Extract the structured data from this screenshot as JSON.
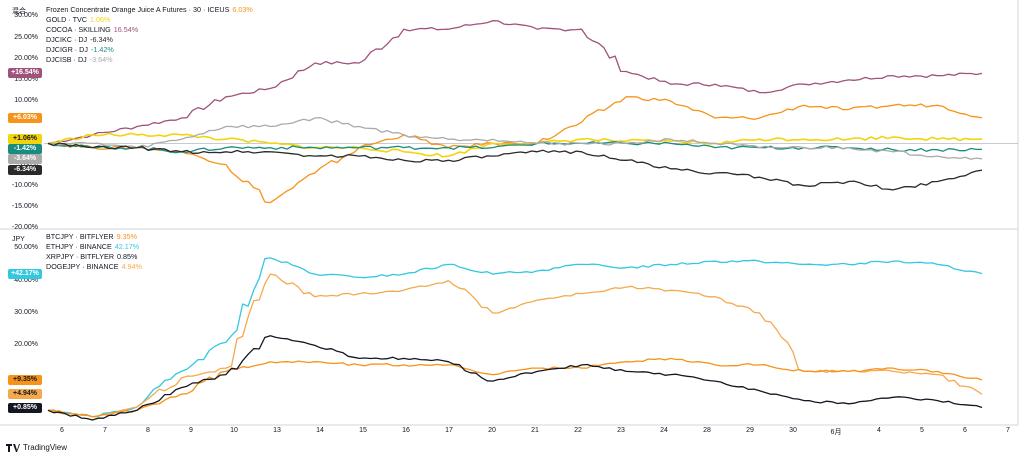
{
  "top_panel": {
    "unit_label": "混合",
    "legend": [
      {
        "name": "Frozen Concentrate Orange Juice A Futures · 30 · ICEUS",
        "value": "6.03%",
        "color": "#f7931a"
      },
      {
        "name": "GOLD · TVC",
        "value": "1.06%",
        "color": "#f2d40e"
      },
      {
        "name": "COCOA · SKILLING",
        "value": "16.54%",
        "color": "#a0527a"
      },
      {
        "name": "DJCIKC · DJ",
        "value": "-6.34%",
        "color": "#2a2a2a"
      },
      {
        "name": "DJCIGR · DJ",
        "value": "-1.42%",
        "color": "#1a8c7f"
      },
      {
        "name": "DJCISB · DJ",
        "value": "-3.64%",
        "color": "#aaaaaa"
      }
    ],
    "y_ticks": [
      "30.00%",
      "25.00%",
      "20.00%",
      "15.00%",
      "10.00%",
      "5.00%",
      "0.00%",
      "-5.00%",
      "-10.00%",
      "-15.00%",
      "-20.00%"
    ],
    "badges": [
      {
        "text": "+16.54%",
        "color": "#a0527a",
        "value": 16.54
      },
      {
        "text": "+6.03%",
        "color": "#f7931a",
        "value": 6.03
      },
      {
        "text": "+1.06%",
        "color": "#f2d40e",
        "value": 1.06,
        "dark": true
      },
      {
        "text": "-1.42%",
        "color": "#1a8c7f",
        "value": -1.42
      },
      {
        "text": "-3.64%",
        "color": "#aaaaaa",
        "value": -3.64
      },
      {
        "text": "-6.34%",
        "color": "#2a2a2a",
        "value": -6.34
      }
    ]
  },
  "bottom_panel": {
    "unit_label": "JPY",
    "legend": [
      {
        "name": "BTCJPY · BITFLYER",
        "value": "9.35%",
        "color": "#f7931a"
      },
      {
        "name": "ETHJPY · BINANCE",
        "value": "42.17%",
        "color": "#32c8e0"
      },
      {
        "name": "XRPJPY · BITFLYER",
        "value": "0.85%",
        "color": "#131722"
      },
      {
        "name": "DOGEJPY · BINANCE",
        "value": "4.94%",
        "color": "#f5a94d"
      }
    ],
    "y_ticks": [
      "50.00%",
      "40.00%",
      "30.00%",
      "20.00%"
    ],
    "badges": [
      {
        "text": "+42.17%",
        "color": "#32c8e0",
        "value": 42.17
      },
      {
        "text": "+9.35%",
        "color": "#f7931a",
        "value": 9.35,
        "dark": true
      },
      {
        "text": "+4.94%",
        "color": "#f5a94d",
        "value": 4.94,
        "dark": true
      },
      {
        "text": "+0.85%",
        "color": "#131722",
        "value": 0.85
      }
    ]
  },
  "x_ticks": [
    "6",
    "7",
    "8",
    "9",
    "10",
    "13",
    "14",
    "15",
    "16",
    "17",
    "20",
    "21",
    "22",
    "23",
    "24",
    "28",
    "29",
    "30",
    "6月",
    "4",
    "5",
    "6",
    "7"
  ],
  "branding": "TradingView",
  "chart_data": [
    {
      "type": "line",
      "x": [
        "6",
        "7",
        "8",
        "9",
        "10",
        "13",
        "14",
        "15",
        "16",
        "17",
        "20",
        "21",
        "22",
        "23",
        "24",
        "28",
        "29",
        "30",
        "6月",
        "4",
        "5",
        "6"
      ],
      "ylim": [
        -20,
        32
      ],
      "series": [
        {
          "name": "COCOA · SKILLING",
          "color": "#a0527a",
          "values": [
            0,
            2,
            4,
            6,
            11,
            13,
            19,
            19,
            27,
            27,
            29,
            27,
            27,
            17,
            14,
            14,
            12,
            14,
            15,
            16,
            16,
            16.54
          ]
        },
        {
          "name": "Frozen Concentrate Orange Juice A Futures · 30 · ICEUS",
          "color": "#f7931a",
          "values": [
            0,
            -1,
            -1,
            -2,
            -5,
            -14,
            -7,
            -1,
            2,
            -1,
            0,
            0,
            5,
            11,
            10,
            6,
            6,
            9,
            8,
            9,
            9,
            6.03
          ]
        },
        {
          "name": "GOLD · TVC",
          "color": "#f2d40e",
          "values": [
            0,
            2,
            2,
            2,
            1,
            0,
            -1,
            -1,
            -2,
            -3,
            0,
            0,
            1,
            0.5,
            0.5,
            0,
            1,
            1,
            1,
            1.5,
            1,
            1.06
          ]
        },
        {
          "name": "DJCIGR · DJ",
          "color": "#1a8c7f",
          "values": [
            0,
            -1,
            -1,
            -2,
            -1,
            -1,
            -1,
            -1,
            -1,
            -1,
            -1,
            0,
            0,
            0,
            0,
            -1,
            -1,
            -1,
            -1,
            -1.5,
            -1.5,
            -1.42
          ]
        },
        {
          "name": "DJCISB · DJ",
          "color": "#aaaaaa",
          "values": [
            0,
            0,
            -1,
            1,
            4,
            4,
            6,
            4,
            2,
            1,
            1,
            0,
            0,
            0,
            1,
            0,
            -1,
            -1,
            -1,
            -2,
            -3,
            -3.64
          ]
        },
        {
          "name": "DJCIKC · DJ",
          "color": "#2a2a2a",
          "values": [
            0,
            -1,
            -1,
            -2,
            -2,
            -2,
            -3,
            -3,
            -4,
            -4,
            -3,
            -2,
            -2,
            -4,
            -6,
            -7,
            -8,
            -10,
            -9,
            -11,
            -9,
            -6.34
          ]
        }
      ]
    },
    {
      "type": "line",
      "x": [
        "6",
        "7",
        "8",
        "9",
        "10",
        "13",
        "14",
        "15",
        "16",
        "17",
        "20",
        "21",
        "22",
        "23",
        "24",
        "28",
        "29",
        "30",
        "6月",
        "4",
        "5",
        "6"
      ],
      "ylim": [
        -3,
        55
      ],
      "series": [
        {
          "name": "ETHJPY · BINANCE",
          "color": "#32c8e0",
          "values": [
            0,
            -2,
            1,
            12,
            21,
            47,
            42,
            41,
            42,
            45,
            42,
            43,
            45,
            44,
            45,
            46,
            46,
            45,
            45,
            46,
            45,
            42.17
          ]
        },
        {
          "name": "DOGEJPY · BINANCE",
          "color": "#f5a94d",
          "values": [
            0,
            -2,
            1,
            10,
            13,
            42,
            35,
            36,
            37,
            40,
            30,
            34,
            36,
            38,
            37,
            35,
            30,
            12,
            12,
            12,
            11,
            4.94
          ]
        },
        {
          "name": "BTCJPY · BITFLYER",
          "color": "#f7931a",
          "values": [
            0,
            -2,
            0,
            5,
            12,
            15,
            15,
            14,
            14,
            14,
            11,
            13,
            13,
            15,
            16,
            14,
            14,
            12,
            12,
            13,
            12,
            9.35
          ]
        },
        {
          "name": "XRPJPY · BITFLYER",
          "color": "#131722",
          "values": [
            0,
            -3,
            0,
            7,
            11,
            23,
            20,
            16,
            16,
            15,
            9,
            12,
            14,
            12,
            11,
            9,
            6,
            3,
            2,
            4,
            3,
            0.85
          ]
        }
      ]
    }
  ]
}
